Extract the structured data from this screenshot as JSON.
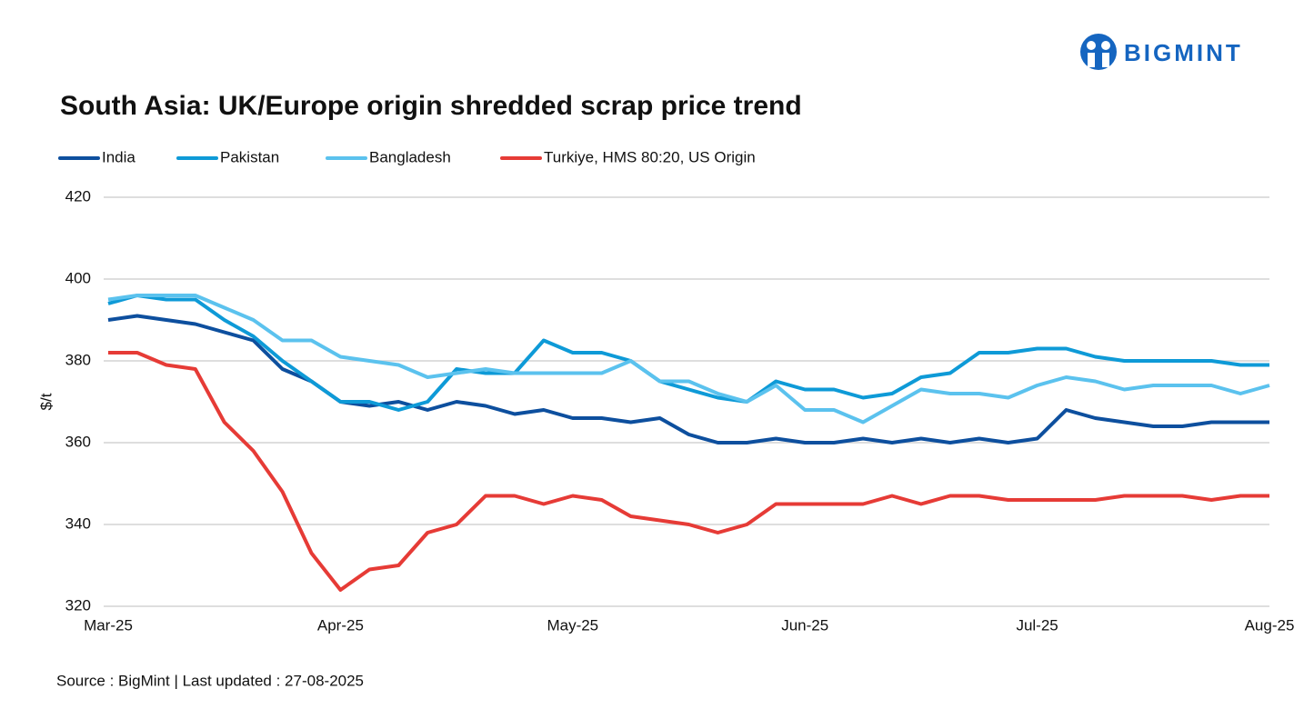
{
  "logo": "BIGMINT",
  "chart_data": {
    "type": "line",
    "title": "South Asia: UK/Europe origin shredded scrap price trend",
    "ylabel": "$/t",
    "source": "Source : BigMint | Last updated : 27-08-2025",
    "categories": [
      "Mar-25",
      null,
      null,
      null,
      null,
      null,
      null,
      null,
      "Apr-25",
      null,
      null,
      null,
      null,
      null,
      null,
      null,
      "May-25",
      null,
      null,
      null,
      null,
      null,
      null,
      null,
      "Jun-25",
      null,
      null,
      null,
      null,
      null,
      null,
      null,
      "Jul-25",
      null,
      null,
      null,
      null,
      null,
      null,
      null,
      "Aug-25"
    ],
    "series": [
      {
        "name": "India",
        "color": "#0d4f9e",
        "values": [
          390,
          391,
          390,
          389,
          387,
          385,
          378,
          375,
          370,
          369,
          370,
          368,
          370,
          369,
          367,
          368,
          366,
          366,
          365,
          366,
          362,
          360,
          360,
          361,
          360,
          360,
          361,
          360,
          361,
          360,
          361,
          360,
          361,
          368,
          366,
          365,
          364,
          364,
          365,
          365,
          365
        ]
      },
      {
        "name": "Pakistan",
        "color": "#0e9ad7",
        "values": [
          394,
          396,
          395,
          395,
          390,
          386,
          380,
          375,
          370,
          370,
          368,
          370,
          378,
          377,
          377,
          385,
          382,
          382,
          380,
          375,
          373,
          371,
          370,
          375,
          373,
          373,
          371,
          372,
          376,
          377,
          382,
          382,
          383,
          383,
          381,
          380,
          380,
          380,
          380,
          379,
          379
        ]
      },
      {
        "name": "Bangladesh",
        "color": "#5bc2ee",
        "values": [
          395,
          396,
          396,
          396,
          393,
          390,
          385,
          385,
          381,
          380,
          379,
          376,
          377,
          378,
          377,
          377,
          377,
          377,
          380,
          375,
          375,
          372,
          370,
          374,
          368,
          368,
          365,
          369,
          373,
          372,
          372,
          371,
          374,
          376,
          375,
          373,
          374,
          374,
          374,
          372,
          374
        ]
      },
      {
        "name": "Turkiye, HMS 80:20, US Origin",
        "color": "#e63b36",
        "values": [
          382,
          382,
          379,
          378,
          365,
          358,
          348,
          333,
          324,
          329,
          330,
          338,
          340,
          347,
          347,
          345,
          347,
          346,
          342,
          341,
          340,
          338,
          340,
          345,
          345,
          345,
          345,
          347,
          345,
          347,
          347,
          346,
          346,
          346,
          346,
          347,
          347,
          347,
          346,
          347,
          347
        ]
      }
    ],
    "ylim": [
      320,
      420
    ],
    "yticks": [
      320,
      340,
      360,
      380,
      400,
      420
    ],
    "grid": true
  }
}
